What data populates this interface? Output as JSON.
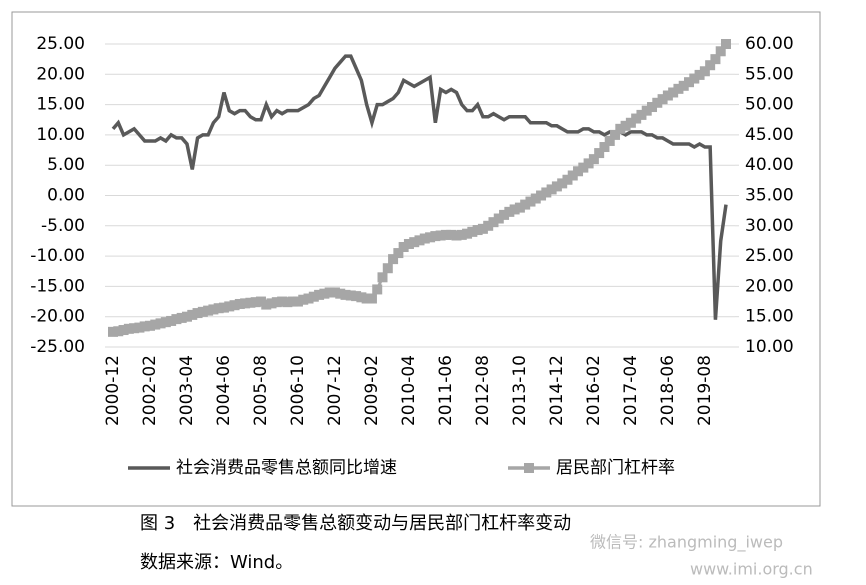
{
  "chart_data": {
    "type": "line",
    "categories": [
      "2000-12",
      null,
      null,
      null,
      null,
      null,
      null,
      "2002-02",
      null,
      null,
      null,
      null,
      null,
      null,
      "2003-04",
      null,
      null,
      null,
      null,
      null,
      null,
      "2004-06",
      null,
      null,
      null,
      null,
      null,
      null,
      "2005-08",
      null,
      null,
      null,
      null,
      null,
      null,
      "2006-10",
      null,
      null,
      null,
      null,
      null,
      null,
      "2007-12",
      null,
      null,
      null,
      null,
      null,
      null,
      "2009-02",
      null,
      null,
      null,
      null,
      null,
      null,
      "2010-04",
      null,
      null,
      null,
      null,
      null,
      null,
      "2011-06",
      null,
      null,
      null,
      null,
      null,
      null,
      "2012-08",
      null,
      null,
      null,
      null,
      null,
      null,
      "2013-10",
      null,
      null,
      null,
      null,
      null,
      null,
      "2014-12",
      null,
      null,
      null,
      null,
      null,
      null,
      "2016-02",
      null,
      null,
      null,
      null,
      null,
      null,
      "2017-04",
      null,
      null,
      null,
      null,
      null,
      null,
      "2018-06",
      null,
      null,
      null,
      null,
      null,
      null,
      "2019-08",
      null,
      null,
      null,
      null
    ],
    "series": [
      {
        "name": "社会消费品零售总额同比增速",
        "color": "#595959",
        "axis": "y",
        "values": [
          11,
          12,
          10,
          10.5,
          11,
          10,
          9,
          9,
          9,
          9.5,
          9,
          10,
          9.5,
          9.5,
          8.5,
          4.3,
          9.5,
          10,
          10,
          12,
          13,
          17,
          14,
          13.5,
          14,
          14,
          13,
          12.5,
          12.5,
          15,
          13,
          14,
          13.5,
          14,
          14,
          14,
          14.5,
          15,
          16,
          16.5,
          18,
          19.5,
          21,
          22,
          23,
          23,
          21,
          19,
          15,
          12,
          15,
          15,
          15.5,
          16,
          17,
          19,
          18.5,
          18,
          18.5,
          19,
          19.5,
          12,
          17.5,
          17,
          17.5,
          17,
          15,
          14,
          14,
          15,
          13,
          13,
          13.5,
          13,
          12.5,
          13,
          13,
          13,
          13,
          12,
          12,
          12,
          12,
          11.5,
          11.5,
          11,
          10.5,
          10.5,
          10.5,
          11,
          11,
          10.5,
          10.5,
          10,
          10.5,
          10.5,
          10.5,
          10,
          10.5,
          10.5,
          10.5,
          10,
          10,
          9.5,
          9.5,
          9,
          8.5,
          8.5,
          8.5,
          8.5,
          8,
          8.5,
          8,
          8,
          -20.5,
          -7.5,
          -1.5
        ]
      },
      {
        "name": "居民部门杠杆率",
        "color": "#a6a6a6",
        "axis": "y2",
        "values": [
          12.5,
          12.6,
          12.8,
          13.0,
          13.1,
          13.2,
          13.4,
          13.5,
          13.7,
          13.9,
          14.1,
          14.3,
          14.6,
          14.8,
          15.0,
          15.3,
          15.6,
          15.8,
          16.0,
          16.2,
          16.4,
          16.5,
          16.7,
          16.9,
          17.1,
          17.2,
          17.3,
          17.4,
          17.5,
          17.0,
          17.2,
          17.4,
          17.5,
          17.4,
          17.5,
          17.5,
          17.8,
          18.0,
          18.3,
          18.6,
          18.8,
          19.0,
          19.0,
          18.8,
          18.6,
          18.5,
          18.4,
          18.2,
          18.0,
          18.0,
          19.5,
          21.5,
          23.0,
          24.5,
          25.5,
          26.5,
          27.0,
          27.3,
          27.6,
          27.9,
          28.1,
          28.3,
          28.4,
          28.5,
          28.5,
          28.4,
          28.5,
          28.7,
          29.0,
          29.3,
          29.5,
          30.0,
          30.6,
          31.2,
          31.8,
          32.3,
          32.7,
          33.0,
          33.5,
          34.0,
          34.5,
          35.0,
          35.5,
          36.0,
          36.5,
          37.0,
          37.6,
          38.3,
          39.0,
          39.6,
          40.3,
          41.0,
          42.0,
          43.0,
          44.0,
          45.0,
          46.0,
          46.5,
          47.0,
          47.7,
          48.3,
          49.0,
          49.6,
          50.3,
          50.9,
          51.5,
          52.0,
          52.6,
          53.1,
          53.7,
          54.3,
          54.9,
          55.5,
          56.5,
          57.5,
          58.8,
          60.0
        ]
      }
    ],
    "ylim": [
      -25,
      25
    ],
    "yticks": [
      {
        "value": -25,
        "label": "-25.00"
      },
      {
        "value": -20,
        "label": "-20.00"
      },
      {
        "value": -15,
        "label": "-15.00"
      },
      {
        "value": -10,
        "label": "-10.00"
      },
      {
        "value": -5,
        "label": "-5.00"
      },
      {
        "value": 0,
        "label": "0.00"
      },
      {
        "value": 5,
        "label": "5.00"
      },
      {
        "value": 10,
        "label": "10.00"
      },
      {
        "value": 15,
        "label": "15.00"
      },
      {
        "value": 20,
        "label": "20.00"
      },
      {
        "value": 25,
        "label": "25.00"
      }
    ],
    "y2lim": [
      10,
      60
    ],
    "y2ticks": [
      {
        "value": 10,
        "label": "10.00"
      },
      {
        "value": 15,
        "label": "15.00"
      },
      {
        "value": 20,
        "label": "20.00"
      },
      {
        "value": 25,
        "label": "25.00"
      },
      {
        "value": 30,
        "label": "30.00"
      },
      {
        "value": 35,
        "label": "35.00"
      },
      {
        "value": 40,
        "label": "40.00"
      },
      {
        "value": 45,
        "label": "45.00"
      },
      {
        "value": 50,
        "label": "50.00"
      },
      {
        "value": 55,
        "label": "55.00"
      },
      {
        "value": 60,
        "label": "60.00"
      }
    ],
    "grid": true,
    "legend": "bottom",
    "caption": "图 3　社会消费品零售总额变动与居民部门杠杆率变动",
    "source": "数据来源：Wind。",
    "watermark": [
      "微信号: zhangming_iwep",
      "www.imi.org.cn"
    ]
  }
}
